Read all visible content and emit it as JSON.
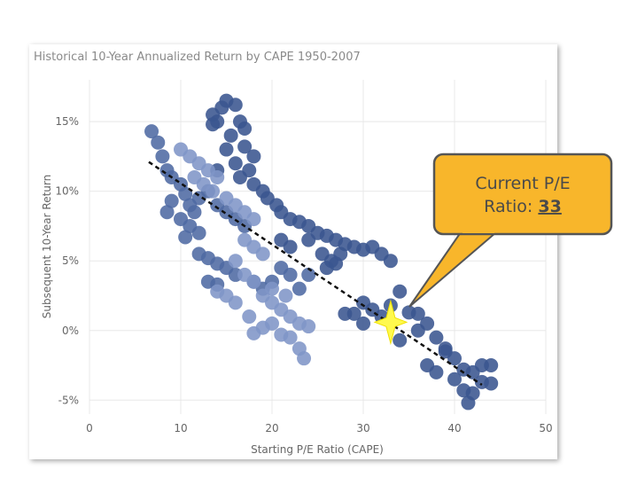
{
  "chart_data": {
    "type": "scatter",
    "title": "Historical 10-Year Annualized Return by CAPE 1950-2007",
    "x_label": "Starting P/E Ratio (CAPE)",
    "y_label": "Subsequent 10-Year Return",
    "xlim": [
      0,
      50
    ],
    "xticks": [
      0,
      10,
      20,
      30,
      40,
      50
    ],
    "ylim": [
      -6,
      18
    ],
    "yticks": [
      {
        "value": -5,
        "label": "-5%"
      },
      {
        "value": 0,
        "label": "0%"
      },
      {
        "value": 5,
        "label": "5%"
      },
      {
        "value": 10,
        "label": "10%"
      },
      {
        "value": 15,
        "label": "15%"
      }
    ],
    "grid": true,
    "series": [
      {
        "color": "#3a5590",
        "x": [
          15,
          14.5,
          16,
          13.5,
          14,
          16.5,
          17,
          15.5,
          13.5,
          17,
          18,
          17.5,
          16.5,
          18,
          19,
          19.5,
          20.5,
          21,
          22,
          23,
          24,
          25,
          26,
          27,
          28,
          29,
          30,
          31,
          32,
          33,
          24,
          25.5,
          26.5,
          27,
          26,
          27.5,
          22,
          21,
          15,
          16,
          14,
          34,
          33,
          32,
          29,
          30,
          31,
          35,
          36,
          37,
          38,
          39,
          40,
          41,
          42,
          43,
          44,
          40,
          41,
          42,
          43,
          44,
          37,
          38,
          41.5,
          36,
          34,
          39,
          30,
          28
        ],
        "values": [
          16.5,
          16,
          16.2,
          15.5,
          15,
          15,
          14.5,
          14,
          14.8,
          13.2,
          12.5,
          11.5,
          11,
          10.5,
          10,
          9.5,
          9,
          8.5,
          8,
          7.8,
          7.5,
          7,
          6.8,
          6.5,
          6.2,
          6,
          5.8,
          6,
          5.5,
          5,
          6.5,
          5.5,
          5,
          4.8,
          4.5,
          5.5,
          6,
          6.5,
          13,
          12,
          11.5,
          2.8,
          1.8,
          1,
          1.2,
          2,
          1.5,
          1.3,
          1.2,
          0.5,
          -0.5,
          -1.3,
          -2,
          -2.8,
          -3,
          -2.5,
          -2.5,
          -3.5,
          -4.3,
          -4.5,
          -3.7,
          -3.8,
          -2.5,
          -3,
          -5.2,
          0,
          -0.7,
          -1.5,
          0.5,
          1.2
        ]
      },
      {
        "color": "#4f6aa3",
        "x": [
          6.8,
          7.5,
          8,
          8.5,
          9,
          10,
          10.5,
          11,
          9,
          8.5,
          10,
          11,
          12,
          10.5,
          11.5,
          12,
          13,
          14,
          15,
          16,
          17,
          12,
          13,
          14,
          15,
          16,
          18,
          19,
          20,
          21,
          22,
          23,
          24,
          14,
          13
        ],
        "values": [
          14.3,
          13.5,
          12.5,
          11.5,
          11,
          10.5,
          9.8,
          9,
          9.3,
          8.5,
          8,
          7.5,
          7,
          6.7,
          8.5,
          9.5,
          10,
          9,
          8.5,
          8,
          7.5,
          5.5,
          5.2,
          4.8,
          4.5,
          4,
          3.5,
          3,
          3.5,
          4.5,
          4,
          3,
          4,
          3.3,
          3.5
        ]
      },
      {
        "color": "#7f95c7",
        "x": [
          10,
          11,
          12,
          13,
          14,
          11.5,
          12.5,
          13.5,
          15,
          16,
          17,
          18,
          17,
          18,
          19,
          16,
          17,
          18,
          19,
          20,
          21,
          22,
          23,
          24,
          22,
          23,
          23.5,
          21,
          20,
          17.5,
          16,
          15,
          14,
          18,
          19,
          21.5,
          20
        ],
        "values": [
          13,
          12.5,
          12,
          11.5,
          11,
          11,
          10.5,
          10,
          9.5,
          9,
          8.5,
          8,
          6.5,
          6,
          5.5,
          5,
          4,
          3.5,
          2.5,
          2,
          1.5,
          1,
          0.5,
          0.3,
          -0.5,
          -1.3,
          -2,
          -0.3,
          0.5,
          1,
          2,
          2.5,
          2.8,
          -0.2,
          0.2,
          2.5,
          3
        ]
      }
    ],
    "trendline": {
      "x": [
        6.5,
        43
      ],
      "y": [
        12.1,
        -3.9
      ]
    },
    "callout": {
      "line1": "Current P/E",
      "label": "Ratio:",
      "value": 33,
      "current_return": 0.6
    }
  }
}
